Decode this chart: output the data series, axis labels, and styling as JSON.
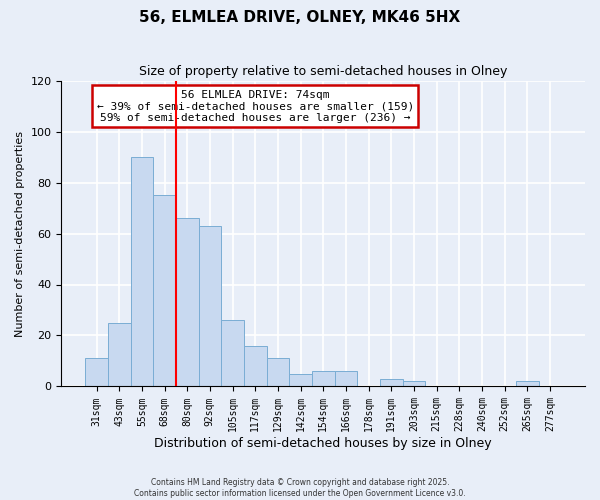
{
  "title": "56, ELMLEA DRIVE, OLNEY, MK46 5HX",
  "subtitle": "Size of property relative to semi-detached houses in Olney",
  "xlabel": "Distribution of semi-detached houses by size in Olney",
  "ylabel": "Number of semi-detached properties",
  "bar_labels": [
    "31sqm",
    "43sqm",
    "55sqm",
    "68sqm",
    "80sqm",
    "92sqm",
    "105sqm",
    "117sqm",
    "129sqm",
    "142sqm",
    "154sqm",
    "166sqm",
    "178sqm",
    "191sqm",
    "203sqm",
    "215sqm",
    "228sqm",
    "240sqm",
    "252sqm",
    "265sqm",
    "277sqm"
  ],
  "bar_values": [
    11,
    25,
    90,
    75,
    66,
    63,
    26,
    16,
    11,
    5,
    6,
    6,
    0,
    3,
    2,
    0,
    0,
    0,
    0,
    2,
    0
  ],
  "bar_color": "#c8d9f0",
  "bar_edge_color": "#7aadd4",
  "vline_x": 3.5,
  "vline_color": "red",
  "ylim": [
    0,
    120
  ],
  "yticks": [
    0,
    20,
    40,
    60,
    80,
    100,
    120
  ],
  "annotation_title": "56 ELMLEA DRIVE: 74sqm",
  "annotation_line1": "← 39% of semi-detached houses are smaller (159)",
  "annotation_line2": "59% of semi-detached houses are larger (236) →",
  "annotation_box_facecolor": "#ffffff",
  "annotation_box_edgecolor": "#cc0000",
  "footer1": "Contains HM Land Registry data © Crown copyright and database right 2025.",
  "footer2": "Contains public sector information licensed under the Open Government Licence v3.0.",
  "fig_facecolor": "#e8eef8",
  "ax_facecolor": "#e8eef8",
  "grid_color": "#ffffff"
}
